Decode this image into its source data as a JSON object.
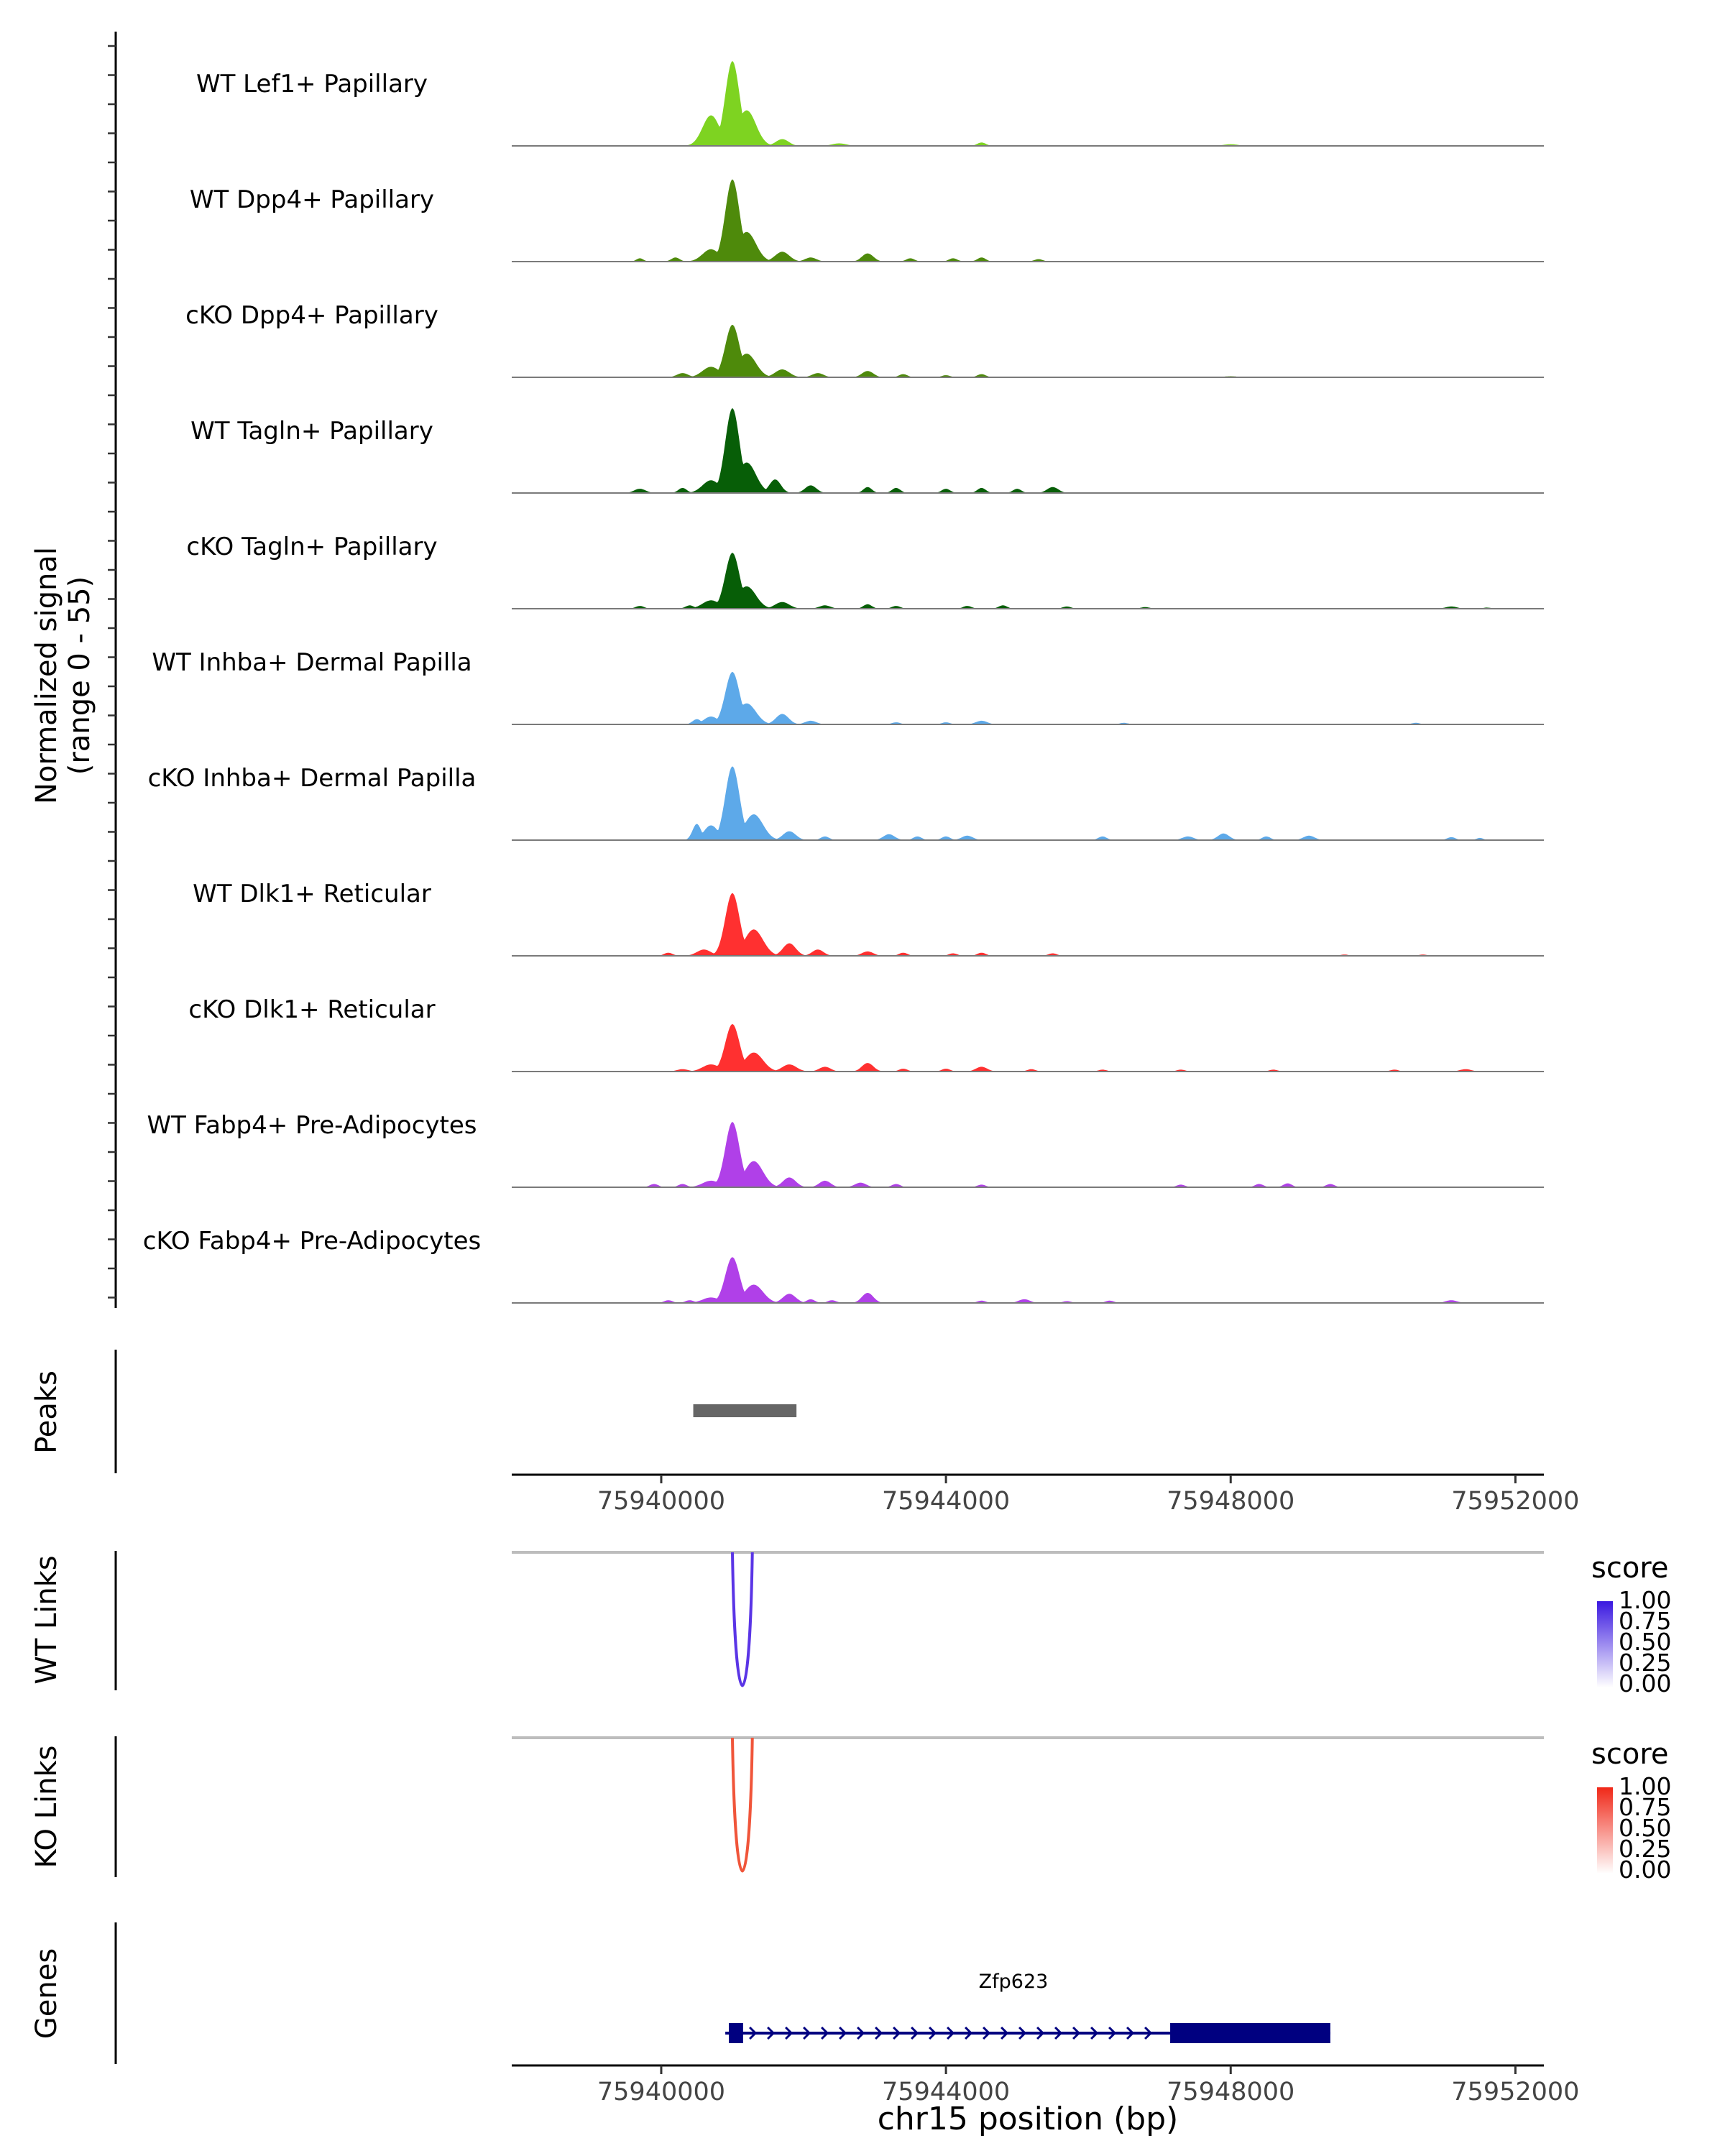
{
  "chart_data": {
    "type": "coverage-track",
    "region": {
      "chrom": "chr15",
      "xlim": [
        75937900,
        75952400
      ]
    },
    "coverage": {
      "ylabel_line1": "Normalized signal",
      "ylabel_line2": "(range 0 - 55)",
      "ylim": [
        0,
        55
      ],
      "tracks": [
        {
          "name": "WT Lef1+ Papillary",
          "color": "#7ED321",
          "scale": 1.0,
          "peaks": [
            [
              75940700,
              0.36,
              120
            ],
            [
              75941000,
              1.0,
              100
            ],
            [
              75941200,
              0.42,
              130
            ],
            [
              75941700,
              0.08,
              90
            ],
            [
              75942500,
              0.03,
              100
            ],
            [
              75944500,
              0.04,
              60
            ],
            [
              75948000,
              0.02,
              100
            ]
          ]
        },
        {
          "name": "WT Dpp4+ Papillary",
          "color": "#4E8A0B",
          "scale": 0.97,
          "peaks": [
            [
              75939700,
              0.04,
              50
            ],
            [
              75940200,
              0.05,
              60
            ],
            [
              75940700,
              0.15,
              120
            ],
            [
              75941000,
              1.0,
              100
            ],
            [
              75941200,
              0.36,
              130
            ],
            [
              75941700,
              0.12,
              100
            ],
            [
              75942100,
              0.05,
              80
            ],
            [
              75942900,
              0.1,
              80
            ],
            [
              75943500,
              0.04,
              60
            ],
            [
              75944100,
              0.04,
              60
            ],
            [
              75944500,
              0.05,
              60
            ],
            [
              75945300,
              0.03,
              60
            ]
          ]
        },
        {
          "name": "cKO Dpp4+ Papillary",
          "color": "#4E8A0B",
          "scale": 0.62,
          "peaks": [
            [
              75940300,
              0.08,
              80
            ],
            [
              75940700,
              0.2,
              120
            ],
            [
              75941000,
              1.0,
              100
            ],
            [
              75941200,
              0.45,
              130
            ],
            [
              75941700,
              0.15,
              100
            ],
            [
              75942200,
              0.08,
              80
            ],
            [
              75942900,
              0.12,
              80
            ],
            [
              75943400,
              0.06,
              60
            ],
            [
              75944000,
              0.04,
              60
            ],
            [
              75944500,
              0.06,
              60
            ],
            [
              75948000,
              0.02,
              100
            ]
          ]
        },
        {
          "name": "WT Tagln+ Papillary",
          "color": "#075E07",
          "scale": 1.0,
          "peaks": [
            [
              75939700,
              0.05,
              80
            ],
            [
              75940300,
              0.06,
              60
            ],
            [
              75940700,
              0.15,
              120
            ],
            [
              75941000,
              1.0,
              100
            ],
            [
              75941200,
              0.36,
              130
            ],
            [
              75941600,
              0.16,
              80
            ],
            [
              75942100,
              0.09,
              80
            ],
            [
              75942900,
              0.07,
              60
            ],
            [
              75943300,
              0.06,
              60
            ],
            [
              75944000,
              0.05,
              60
            ],
            [
              75944500,
              0.06,
              60
            ],
            [
              75945000,
              0.05,
              60
            ],
            [
              75945500,
              0.07,
              80
            ]
          ]
        },
        {
          "name": "cKO Tagln+ Papillary",
          "color": "#075E07",
          "scale": 0.66,
          "peaks": [
            [
              75939700,
              0.05,
              60
            ],
            [
              75940400,
              0.06,
              60
            ],
            [
              75940700,
              0.15,
              120
            ],
            [
              75941000,
              1.0,
              100
            ],
            [
              75941200,
              0.4,
              130
            ],
            [
              75941700,
              0.12,
              100
            ],
            [
              75942300,
              0.06,
              80
            ],
            [
              75942900,
              0.08,
              60
            ],
            [
              75943300,
              0.05,
              60
            ],
            [
              75944300,
              0.05,
              60
            ],
            [
              75944800,
              0.06,
              60
            ],
            [
              75945700,
              0.04,
              60
            ],
            [
              75946800,
              0.03,
              60
            ],
            [
              75951100,
              0.04,
              80
            ],
            [
              75951600,
              0.02,
              60
            ]
          ]
        },
        {
          "name": "WT Inhba+ Dermal Papilla",
          "color": "#5DA9E9",
          "scale": 0.62,
          "peaks": [
            [
              75940500,
              0.1,
              60
            ],
            [
              75940700,
              0.15,
              100
            ],
            [
              75941000,
              1.0,
              100
            ],
            [
              75941200,
              0.4,
              130
            ],
            [
              75941700,
              0.2,
              90
            ],
            [
              75942100,
              0.07,
              80
            ],
            [
              75943300,
              0.04,
              60
            ],
            [
              75944000,
              0.04,
              60
            ],
            [
              75944500,
              0.07,
              80
            ],
            [
              75946500,
              0.03,
              60
            ],
            [
              75950600,
              0.03,
              60
            ]
          ]
        },
        {
          "name": "cKO Inhba+ Dermal Papilla",
          "color": "#5DA9E9",
          "scale": 0.87,
          "peaks": [
            [
              75940500,
              0.22,
              60
            ],
            [
              75940700,
              0.2,
              100
            ],
            [
              75941000,
              1.0,
              100
            ],
            [
              75941300,
              0.35,
              130
            ],
            [
              75941800,
              0.12,
              90
            ],
            [
              75942300,
              0.05,
              60
            ],
            [
              75943200,
              0.08,
              80
            ],
            [
              75943600,
              0.05,
              60
            ],
            [
              75944000,
              0.05,
              60
            ],
            [
              75944300,
              0.06,
              80
            ],
            [
              75946200,
              0.05,
              60
            ],
            [
              75947400,
              0.05,
              80
            ],
            [
              75947900,
              0.09,
              80
            ],
            [
              75948500,
              0.05,
              60
            ],
            [
              75949100,
              0.06,
              80
            ],
            [
              75951100,
              0.04,
              60
            ],
            [
              75951500,
              0.03,
              50
            ]
          ]
        },
        {
          "name": "WT Dlk1+ Reticular",
          "color": "#FF3030",
          "scale": 0.74,
          "peaks": [
            [
              75940100,
              0.05,
              60
            ],
            [
              75940600,
              0.1,
              100
            ],
            [
              75941000,
              1.0,
              100
            ],
            [
              75941300,
              0.42,
              130
            ],
            [
              75941800,
              0.2,
              90
            ],
            [
              75942200,
              0.1,
              80
            ],
            [
              75942900,
              0.07,
              80
            ],
            [
              75943400,
              0.05,
              60
            ],
            [
              75944100,
              0.04,
              60
            ],
            [
              75944500,
              0.05,
              60
            ],
            [
              75945500,
              0.04,
              60
            ],
            [
              75949600,
              0.02,
              60
            ],
            [
              75950700,
              0.02,
              60
            ]
          ]
        },
        {
          "name": "cKO Dlk1+ Reticular",
          "color": "#FF3030",
          "scale": 0.56,
          "peaks": [
            [
              75940300,
              0.05,
              80
            ],
            [
              75940700,
              0.15,
              120
            ],
            [
              75941000,
              1.0,
              100
            ],
            [
              75941300,
              0.4,
              130
            ],
            [
              75941800,
              0.15,
              100
            ],
            [
              75942300,
              0.1,
              80
            ],
            [
              75942900,
              0.18,
              80
            ],
            [
              75943400,
              0.06,
              60
            ],
            [
              75944000,
              0.06,
              60
            ],
            [
              75944500,
              0.1,
              80
            ],
            [
              75945200,
              0.05,
              60
            ],
            [
              75946200,
              0.04,
              60
            ],
            [
              75947300,
              0.04,
              60
            ],
            [
              75948600,
              0.04,
              60
            ],
            [
              75950300,
              0.04,
              60
            ],
            [
              75951300,
              0.05,
              80
            ]
          ]
        },
        {
          "name": "WT Fabp4+ Pre-Adipocytes",
          "color": "#B040E8",
          "scale": 0.77,
          "peaks": [
            [
              75939900,
              0.05,
              60
            ],
            [
              75940300,
              0.05,
              60
            ],
            [
              75940700,
              0.1,
              120
            ],
            [
              75941000,
              1.0,
              100
            ],
            [
              75941300,
              0.4,
              130
            ],
            [
              75941800,
              0.15,
              90
            ],
            [
              75942300,
              0.1,
              80
            ],
            [
              75942800,
              0.07,
              80
            ],
            [
              75943300,
              0.05,
              60
            ],
            [
              75944500,
              0.04,
              60
            ],
            [
              75947300,
              0.04,
              60
            ],
            [
              75948400,
              0.05,
              60
            ],
            [
              75948800,
              0.06,
              60
            ],
            [
              75949400,
              0.05,
              60
            ]
          ]
        },
        {
          "name": "cKO Fabp4+ Pre-Adipocytes",
          "color": "#B040E8",
          "scale": 0.54,
          "peaks": [
            [
              75940100,
              0.06,
              60
            ],
            [
              75940400,
              0.06,
              60
            ],
            [
              75940700,
              0.12,
              120
            ],
            [
              75941000,
              1.0,
              100
            ],
            [
              75941300,
              0.4,
              130
            ],
            [
              75941800,
              0.2,
              90
            ],
            [
              75942100,
              0.08,
              60
            ],
            [
              75942400,
              0.06,
              60
            ],
            [
              75942900,
              0.22,
              80
            ],
            [
              75944500,
              0.05,
              60
            ],
            [
              75945100,
              0.08,
              80
            ],
            [
              75945700,
              0.04,
              60
            ],
            [
              75946300,
              0.05,
              60
            ],
            [
              75951100,
              0.06,
              80
            ]
          ]
        }
      ]
    },
    "peaks_track": {
      "label": "Peaks",
      "regions": [
        [
          75940450,
          75941900
        ]
      ],
      "color": "#666666"
    },
    "x_axis": {
      "ticks": [
        75940000,
        75944000,
        75948000,
        75952000
      ],
      "tick_labels": [
        "75940000",
        "75944000",
        "75948000",
        "75952000"
      ],
      "xlabel": "chr15 position (bp)"
    },
    "links_tracks": [
      {
        "label": "WT Links",
        "color": "#5A35E6",
        "start": 75941000,
        "end": 75941280,
        "score": 1.0,
        "legend_title": "score",
        "legend_ticks": [
          "1.00",
          "0.75",
          "0.50",
          "0.25",
          "0.00"
        ],
        "legend_high": "#3A18E0",
        "legend_low": "#FFFFFF"
      },
      {
        "label": "KO Links",
        "color": "#F0553A",
        "start": 75941000,
        "end": 75941280,
        "score": 1.0,
        "legend_title": "score",
        "legend_ticks": [
          "1.00",
          "0.75",
          "0.50",
          "0.25",
          "0.00"
        ],
        "legend_high": "#F02818",
        "legend_low": "#FFFFFF"
      }
    ],
    "genes_track": {
      "label": "Genes",
      "color": "#000080",
      "genes": [
        {
          "name": "Zfp623",
          "strand": "+",
          "start": 75940900,
          "end": 75949400,
          "exons": [
            [
              75940950,
              75941150
            ],
            [
              75947150,
              75949400
            ]
          ]
        }
      ]
    }
  }
}
